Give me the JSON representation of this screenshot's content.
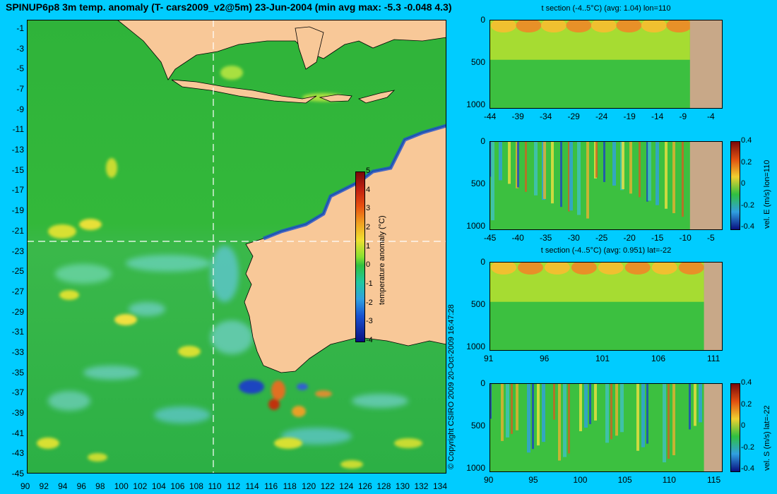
{
  "title": "SPINUP6p8 3m temp. anomaly (T- cars2009_v2@5m) 23-Jun-2004 (min avg max: -5.3 -0.048 4.3)",
  "map": {
    "lat_ticks": [
      "-1",
      "-3",
      "-5",
      "-7",
      "-9",
      "-11",
      "-13",
      "-15",
      "-17",
      "-19",
      "-21",
      "-23",
      "-25",
      "-27",
      "-29",
      "-31",
      "-33",
      "-35",
      "-37",
      "-39",
      "-41",
      "-43",
      "-45"
    ],
    "lon_ticks": [
      "90",
      "92",
      "94",
      "96",
      "98",
      "100",
      "102",
      "104",
      "106",
      "108",
      "110",
      "112",
      "114",
      "116",
      "118",
      "120",
      "122",
      "124",
      "126",
      "128",
      "130",
      "132",
      "134"
    ],
    "section_lon": 110,
    "section_lat": -22,
    "colors": {
      "ocean": "#22b43a",
      "land": "#f8c898",
      "ocean_light": "#60d060"
    },
    "colorbar": {
      "label": "temperature anomaly (°C)",
      "ticks": [
        "5",
        "4",
        "3",
        "2",
        "1",
        "0",
        "-1",
        "-2",
        "-3",
        "-4"
      ],
      "range": [
        -4,
        5
      ]
    }
  },
  "copyright": "© Copyright CSIRO 2009   20-Oct-2009 16:47:28",
  "panels": [
    {
      "title": "t section (-4..5°C) (avg: 1.04) lon=110",
      "x_ticks": [
        "-44",
        "-39",
        "-34",
        "-29",
        "-24",
        "-19",
        "-14",
        "-9",
        "-4"
      ],
      "y_ticks": [
        "0",
        "500",
        "1000"
      ],
      "kind": "temp",
      "land_frac": 0.86
    },
    {
      "title": "",
      "x_ticks": [
        "-45",
        "-40",
        "-35",
        "-30",
        "-25",
        "-20",
        "-15",
        "-10",
        "-5"
      ],
      "y_ticks": [
        "0",
        "500",
        "1000"
      ],
      "kind": "vel",
      "land_frac": 0.86,
      "colorbar": {
        "label": "vel. E (m/s) lon=110",
        "ticks": [
          "0.4",
          "0.2",
          "0",
          "-0.2",
          "-0.4"
        ]
      }
    },
    {
      "title": "t section (-4..5°C) (avg: 0.951) lat=-22",
      "x_ticks": [
        "91",
        "96",
        "101",
        "106",
        "111"
      ],
      "y_ticks": [
        "0",
        "500",
        "1000"
      ],
      "kind": "temp",
      "land_frac": 0.92
    },
    {
      "title": "",
      "x_ticks": [
        "90",
        "95",
        "100",
        "105",
        "110",
        "115"
      ],
      "y_ticks": [
        "0",
        "500",
        "1000"
      ],
      "kind": "vel",
      "land_frac": 0.92,
      "colorbar": {
        "label": "vel. S (m/s) lat=-22",
        "ticks": [
          "0.4",
          "0.2",
          "0",
          "-0.2",
          "-0.4"
        ]
      }
    }
  ]
}
